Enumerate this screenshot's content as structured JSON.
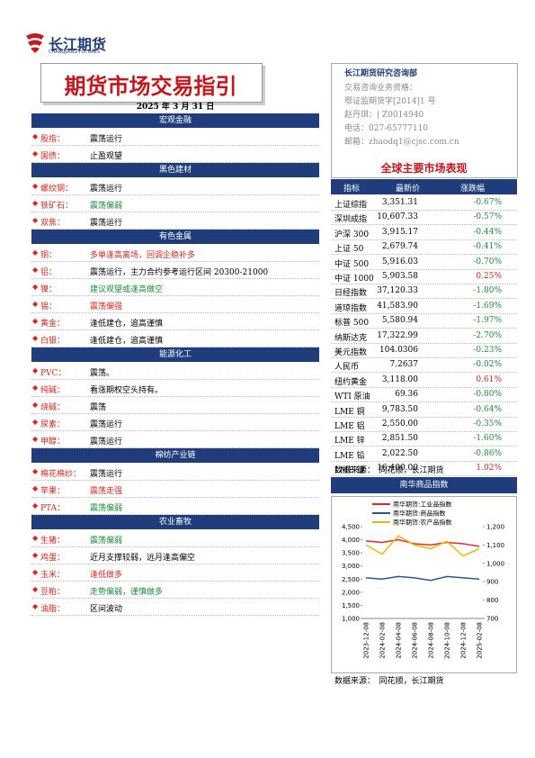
{
  "header": {
    "logo": "长江期货",
    "logo_en": "CHANGJIANG FUTURES",
    "title": "期货市场交易指引",
    "date": "2025 年 3 月 31 日"
  },
  "sections": [
    {
      "name": "宏观金融",
      "items": [
        {
          "label": "股指：",
          "text": "震荡运行",
          "color": "#000000"
        },
        {
          "label": "国债：",
          "text": "止盈观望",
          "color": "#000000"
        }
      ]
    },
    {
      "name": "黑色建材",
      "items": [
        {
          "label": "螺纹钢：",
          "text": "震荡运行",
          "color": "#000000"
        },
        {
          "label": "铁矿石：",
          "text": "震荡偏弱",
          "color": "#1a8c3a"
        },
        {
          "label": "双焦：",
          "text": "震荡运行",
          "color": "#000000"
        }
      ]
    },
    {
      "name": "有色金属",
      "items": [
        {
          "label": "铜：",
          "text": "多单逢高离场，回调企稳补多",
          "color": "#d7261e"
        },
        {
          "label": "铝：",
          "text": "震荡运行，主力合约参考运行区间 20300-21000",
          "color": "#000000"
        },
        {
          "label": "镍：",
          "text": "建议观望或逢高做空",
          "color": "#1a8c3a"
        },
        {
          "label": "锡：",
          "text": "震荡偏强",
          "color": "#d7261e"
        },
        {
          "label": "黄金：",
          "text": "逢低建仓，追高谨慎",
          "color": "#000000"
        },
        {
          "label": "白银：",
          "text": "逢低建仓，追高谨慎",
          "color": "#000000"
        }
      ]
    },
    {
      "name": "能源化工",
      "items": [
        {
          "label": "PVC：",
          "text": "震荡。",
          "color": "#000000"
        },
        {
          "label": "纯碱：",
          "text": "看涨期权空头持有。",
          "color": "#000000"
        },
        {
          "label": "烧碱：",
          "text": "震荡",
          "color": "#000000"
        },
        {
          "label": "尿素：",
          "text": "震荡运行",
          "color": "#000000"
        },
        {
          "label": "甲醇：",
          "text": "震荡运行",
          "color": "#000000"
        }
      ]
    },
    {
      "name": "棉纺产业链",
      "items": [
        {
          "label": "棉花棉纱：",
          "text": "震荡运行",
          "color": "#000000"
        },
        {
          "label": "苹果：",
          "text": "震荡走强",
          "color": "#d7261e"
        },
        {
          "label": "PTA：",
          "text": "震荡偏弱",
          "color": "#1a8c3a"
        }
      ]
    },
    {
      "name": "农业畜牧",
      "items": [
        {
          "label": "生猪：",
          "text": "震荡偏弱",
          "color": "#1a8c3a"
        },
        {
          "label": "鸡蛋：",
          "text": "近月支撑较弱，远月逢高偏空",
          "color": "#000000"
        },
        {
          "label": "玉米：",
          "text": "逢低做多",
          "color": "#d7261e"
        },
        {
          "label": "豆粕：",
          "text": "走势偏弱，谨慎做多",
          "color": "#1a8c3a"
        },
        {
          "label": "油脂：",
          "text": "区间波动",
          "color": "#000000"
        }
      ]
    }
  ],
  "contact": {
    "org": "长江期货研究咨询部",
    "lines": [
      "交易咨询业务资格：",
      "鄂证监期货字[2014]1 号",
      "赵丹琪：| Z0014940",
      "电话：027-65777110",
      "邮箱：zhaodq1@cjsc.com.cn"
    ]
  },
  "market": {
    "title": "全球主要市场表现",
    "columns": [
      "指标",
      "最新价",
      "涨跌幅"
    ],
    "rows": [
      [
        "上证综指",
        "3,351.31",
        "-0.67%"
      ],
      [
        "深圳成指",
        "10,607.33",
        "-0.57%"
      ],
      [
        "沪深 300",
        "3,915.17",
        "-0.44%"
      ],
      [
        "上证 50",
        "2,679.74",
        "-0.41%"
      ],
      [
        "中证 500",
        "5,916.03",
        "-0.70%"
      ],
      [
        "中证 1000",
        "5,903.58",
        "0.25%"
      ],
      [
        "日经指数",
        "37,120.33",
        "-1.80%"
      ],
      [
        "道琼指数",
        "41,583.90",
        "-1.69%"
      ],
      [
        "标普 500",
        "5,580.94",
        "-1.97%"
      ],
      [
        "纳斯达克",
        "17,322.99",
        "-2.70%"
      ],
      [
        "美元指数",
        "104.0306",
        "-0.23%"
      ],
      [
        "人民币",
        "7.2637",
        "-0.02%"
      ],
      [
        "纽约黄金",
        "3,118.00",
        "0.61%"
      ],
      [
        "WTI 原油",
        "69.36",
        "-0.80%"
      ],
      [
        "LME 铜",
        "9,783.50",
        "-0.64%"
      ],
      [
        "LME 铝",
        "2,550.00",
        "-0.35%"
      ],
      [
        "LME 锌",
        "2,851.50",
        "-1.60%"
      ],
      [
        "LME 铅",
        "2,022.50",
        "-0.86%"
      ],
      [
        "LME 镍",
        "16,400.00",
        "1.02%"
      ]
    ],
    "source": "数据来源：　同花顺，长江期货"
  },
  "nanhua": {
    "title": "南华商品指数",
    "source": "数据来源：　同花顺，长江期货"
  },
  "chart_data": {
    "type": "line",
    "categories": [
      "2023-12-08",
      "2024-02-08",
      "2024-04-08",
      "2024-06-08",
      "2024-08-08",
      "2024-10-08",
      "2024-12-08",
      "2025-02-08"
    ],
    "series": [
      {
        "name": "南华期货:工业品指数",
        "color": "#e8262a",
        "values": [
          3950,
          3900,
          4000,
          3850,
          3800,
          3900,
          3850,
          3750
        ]
      },
      {
        "name": "南华期货:商品指数",
        "color": "#2f5597",
        "values": [
          2550,
          2500,
          2600,
          2550,
          2450,
          2600,
          2550,
          2500
        ]
      },
      {
        "name": "南华期货:农产品指数",
        "color": "#f4b400",
        "axis": "y2",
        "values": [
          1100,
          1050,
          1150,
          1100,
          1080,
          1120,
          1040,
          1080
        ]
      }
    ],
    "ylim": [
      1000,
      4500
    ],
    "yticks": [
      {
        "value": 4500,
        "label": "4,500"
      },
      {
        "value": 4000,
        "label": "4,000"
      },
      {
        "value": 3500,
        "label": "3,500"
      },
      {
        "value": 3000,
        "label": "3,000"
      },
      {
        "value": 2500,
        "label": "2,500"
      },
      {
        "value": 2000,
        "label": "2,000"
      },
      {
        "value": 1500,
        "label": "1,500"
      },
      {
        "value": 1000,
        "label": "1,000"
      }
    ],
    "y2lim": [
      700,
      1200
    ],
    "y2ticks": [
      {
        "value": 1200,
        "label": "1,200"
      },
      {
        "value": 1100,
        "label": "1,100"
      },
      {
        "value": 1000,
        "label": "1,000"
      },
      900,
      800,
      700
    ]
  }
}
